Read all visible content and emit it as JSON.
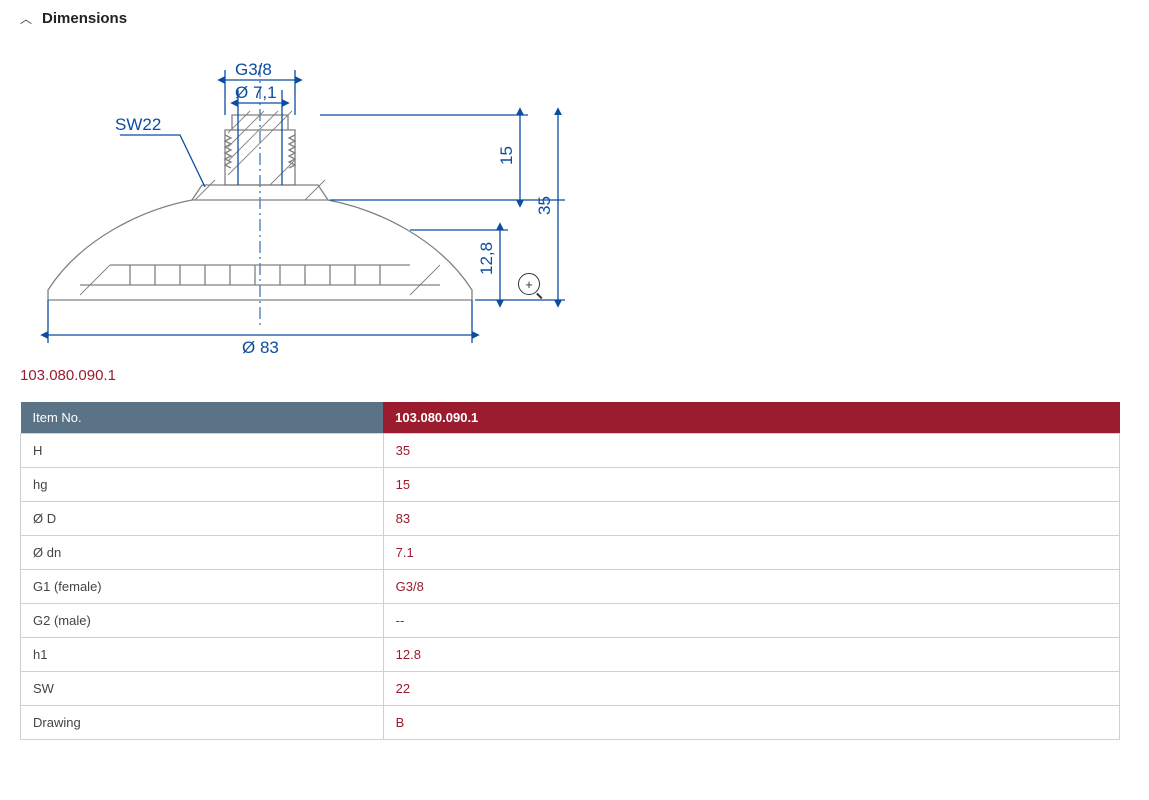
{
  "section": {
    "title": "Dimensions"
  },
  "part_number": "103.080.090.1",
  "diagram": {
    "labels": {
      "thread": "G3/8",
      "bore": "Ø 7,1",
      "wrench": "SW22",
      "outer_dia": "Ø 83",
      "h_top": "15",
      "h_mid": "12,8",
      "h_total": "35"
    },
    "colors": {
      "dimension": "#0b4da2",
      "outline": "#808080",
      "part_no": "#9b1c2e"
    }
  },
  "table": {
    "header_label": "Item No.",
    "header_value": "103.080.090.1",
    "header_colors": {
      "label_bg": "#5b7386",
      "value_bg": "#9b1c2e"
    },
    "rows": [
      {
        "label": "H",
        "value": "35"
      },
      {
        "label": "hg",
        "value": "15"
      },
      {
        "label": "Ø D",
        "value": "83"
      },
      {
        "label": "Ø dn",
        "value": "7.1"
      },
      {
        "label": "G1 (female)",
        "value": "G3/8"
      },
      {
        "label": "G2 (male)",
        "value": "--"
      },
      {
        "label": "h1",
        "value": "12.8"
      },
      {
        "label": "SW",
        "value": "22"
      },
      {
        "label": "Drawing",
        "value": "B"
      }
    ]
  }
}
